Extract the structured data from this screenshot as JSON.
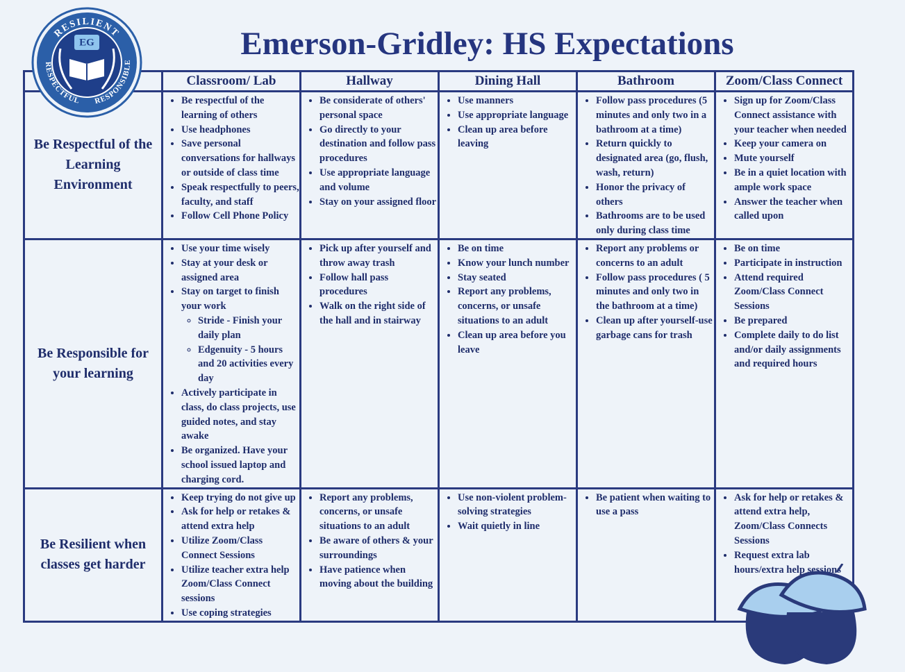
{
  "header": {
    "title": "Emerson-Gridley: HS Expectations"
  },
  "logo": {
    "initials": "EG",
    "top": "RESILIENT",
    "left": "RESPECTFUL",
    "right": "RESPONSIBLE"
  },
  "table": {
    "columns": [
      "Classroom/ Lab",
      "Hallway",
      "Dining Hall",
      "Bathroom",
      "Zoom/Class Connect"
    ],
    "rows": [
      {
        "label": "Be Respectful of the Learning Environment",
        "cells": [
          [
            "Be respectful of the learning of others",
            "Use headphones",
            "Save personal conversations for hallways or outside of class time",
            "Speak respectfully to peers, faculty, and staff",
            "Follow Cell Phone Policy"
          ],
          [
            "Be considerate of others' personal space",
            "Go directly to your destination and follow pass procedures",
            "Use appropriate language and volume",
            "Stay on your assigned floor"
          ],
          [
            "Use manners",
            "Use appropriate language",
            "Clean up area before leaving"
          ],
          [
            "Follow pass procedures (5 minutes and only two in a bathroom at a time)",
            "Return quickly to designated area (go, flush, wash, return)",
            "Honor the privacy of others",
            "Bathrooms are to be used only during class time"
          ],
          [
            "Sign up for Zoom/Class Connect assistance with your teacher when needed",
            "Keep your camera on",
            "Mute yourself",
            "Be in a quiet location with ample work space",
            "Answer the teacher when called upon"
          ]
        ]
      },
      {
        "label": "Be Responsible for your learning",
        "cells": [
          [
            "Use your time wisely",
            "Stay at your desk or assigned area",
            {
              "text": "Stay on target to finish your work",
              "items": [
                "Stride - Finish your daily plan",
                "Edgenuity - 5 hours and 20 activities every day"
              ]
            },
            "Actively participate in class, do class projects, use guided notes, and stay awake",
            "Be organized. Have your school issued laptop and charging cord."
          ],
          [
            "Pick up after yourself and throw away trash",
            "Follow hall pass procedures",
            "Walk on the right side of the hall and in stairway"
          ],
          [
            "Be on time",
            "Know your lunch number",
            "Stay seated",
            "Report any problems, concerns, or unsafe situations to an adult",
            "Clean up area before you leave"
          ],
          [
            "Report any problems or concerns to an adult",
            "Follow pass procedures ( 5 minutes and only two in the bathroom at a time)",
            "Clean up after yourself-use garbage cans for trash"
          ],
          [
            "Be on time",
            "Participate in instruction",
            "Attend required Zoom/Class Connect Sessions",
            "Be prepared",
            "Complete daily to do list and/or daily assignments and required hours"
          ]
        ]
      },
      {
        "label": "Be Resilient when classes get harder",
        "cells": [
          [
            "Keep trying do not give up",
            "Ask for help or retakes & attend extra help",
            "Utilize Zoom/Class Connect Sessions",
            "Utilize teacher extra help Zoom/Class Connect sessions",
            "Use coping strategies"
          ],
          [
            "Report any problems, concerns, or unsafe situations to an adult",
            "Be aware of others & your surroundings",
            "Have patience when moving about the building"
          ],
          [
            "Use non-violent problem-solving strategies",
            "Wait quietly in line"
          ],
          [
            "Be patient when waiting to use a pass"
          ],
          [
            "Ask for help or retakes & attend extra help, Zoom/Class Connects Sessions",
            "Request extra lab hours/extra help sessions"
          ]
        ]
      }
    ]
  }
}
